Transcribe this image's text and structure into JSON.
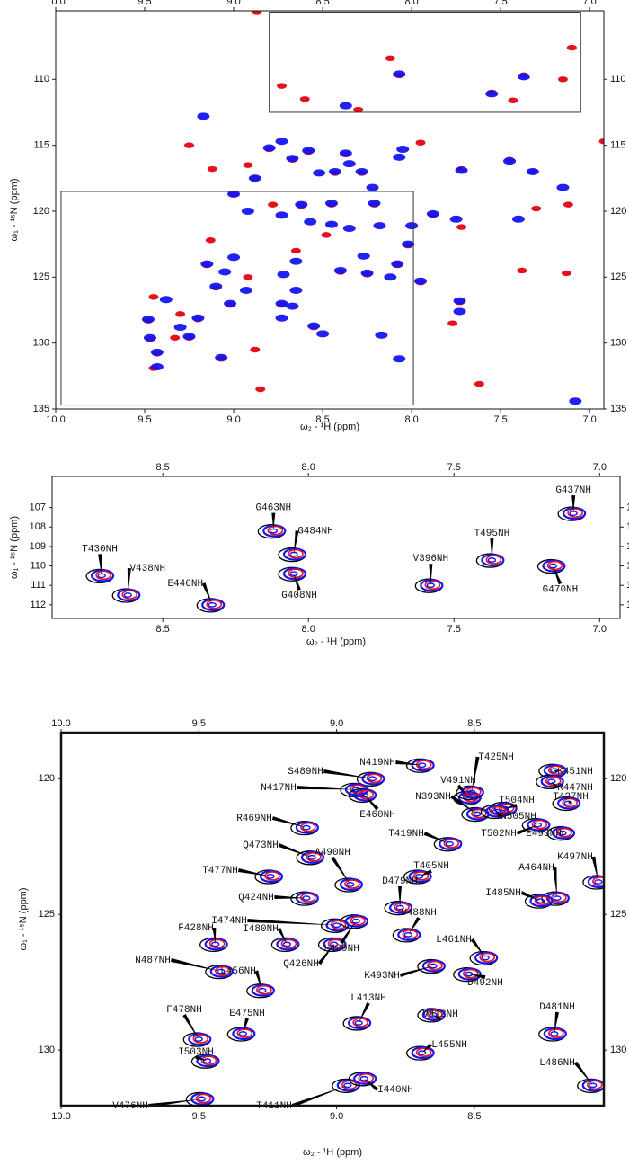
{
  "chart_data": [
    {
      "type": "scatter",
      "xlim": [
        10,
        6.92
      ],
      "ylim": [
        135,
        104.8
      ],
      "xticks": [
        {
          "value": 10,
          "label": "10.0"
        },
        9.5,
        {
          "value": 9,
          "label": "9.0"
        },
        8.5,
        {
          "value": 8,
          "label": "8.0"
        },
        7.5,
        {
          "value": 7,
          "label": "7.0"
        }
      ],
      "yticks": [
        110,
        115,
        120,
        125,
        130,
        135
      ],
      "x_label": "ω₂ - ¹H (ppm)",
      "y_label": "ω₁ - ¹⁵N (ppm)",
      "regions": [
        {
          "xlim": [
            8.8,
            7.05
          ],
          "ylim": [
            112.5,
            104.9
          ]
        },
        {
          "xlim": [
            9.97,
            7.99
          ],
          "ylim": [
            134.7,
            118.5
          ]
        }
      ],
      "series": [
        {
          "color": "#e8101c",
          "x": [
            8.12,
            7.1,
            8.73,
            8.6,
            8.3,
            7.15,
            7.43,
            8.07,
            7.55,
            7.37,
            9.25,
            9.12,
            8.92,
            7.95,
            6.92,
            8.8,
            8.58,
            8.37,
            8.67,
            8.43,
            8.28,
            7.72,
            7.45,
            7.32,
            7.12,
            7.3,
            8.88,
            9.0,
            8.62,
            8.45,
            8.21,
            7.88,
            8.78,
            9.13,
            8.48,
            7.72,
            8.02,
            8.65,
            9.15,
            8.4,
            8.08,
            8.25,
            7.95,
            7.38,
            7.13,
            8.92,
            9.1,
            9.45,
            9.02,
            8.73,
            7.73,
            7.77,
            9.48,
            9.3,
            9.2,
            8.55,
            9.47,
            9.33,
            9.25,
            8.88,
            9.43,
            9.07,
            9.45,
            8.85,
            7.62,
            8.87
          ],
          "y": [
            108.4,
            107.6,
            110.5,
            111.5,
            112.3,
            110.0,
            111.6,
            109.7,
            111.0,
            109.7,
            115.0,
            116.8,
            116.5,
            114.8,
            114.7,
            115.3,
            115.5,
            115.7,
            116.1,
            117.1,
            117.1,
            116.8,
            116.1,
            117.0,
            119.5,
            119.8,
            117.5,
            118.7,
            119.6,
            119.5,
            119.5,
            120.3,
            119.5,
            122.2,
            121.8,
            121.2,
            122.6,
            123.0,
            124.1,
            124.6,
            124.1,
            124.8,
            125.4,
            124.5,
            124.7,
            125.0,
            125.8,
            126.5,
            127.1,
            127.1,
            126.9,
            128.5,
            128.3,
            127.8,
            128.2,
            128.8,
            129.7,
            129.6,
            129.6,
            130.5,
            130.8,
            131.2,
            131.9,
            133.5,
            133.1,
            104.9
          ]
        },
        {
          "color": "#1515f0",
          "x": [
            8.07,
            7.55,
            7.37,
            8.37,
            9.17,
            8.73,
            8.8,
            8.58,
            8.37,
            8.05,
            8.07,
            8.67,
            8.35,
            8.43,
            8.52,
            8.28,
            8.22,
            7.72,
            7.45,
            7.32,
            7.15,
            8.88,
            9.0,
            8.62,
            8.45,
            8.21,
            7.88,
            8.92,
            8.73,
            8.57,
            8.45,
            8.35,
            8.18,
            8.0,
            7.75,
            7.4,
            8.02,
            8.27,
            9.15,
            9.0,
            8.65,
            8.4,
            8.08,
            8.72,
            8.25,
            8.12,
            7.95,
            9.05,
            9.1,
            8.93,
            8.65,
            9.38,
            9.02,
            8.73,
            8.67,
            7.73,
            7.73,
            9.48,
            9.2,
            8.73,
            9.3,
            8.5,
            8.55,
            9.47,
            9.25,
            8.17,
            9.43,
            9.07,
            8.07,
            9.43,
            7.08
          ],
          "y": [
            109.6,
            111.1,
            109.8,
            112.0,
            112.8,
            114.7,
            115.2,
            115.4,
            115.6,
            115.3,
            115.9,
            116.0,
            116.4,
            117.0,
            117.1,
            117.0,
            118.2,
            116.9,
            116.2,
            117.0,
            118.2,
            117.5,
            118.7,
            119.5,
            119.4,
            119.4,
            120.2,
            120.0,
            120.3,
            120.8,
            121.0,
            121.3,
            121.1,
            121.1,
            120.6,
            120.6,
            122.5,
            123.4,
            124.0,
            123.5,
            123.8,
            124.5,
            124.0,
            124.8,
            124.7,
            125.0,
            125.3,
            124.6,
            125.7,
            126.0,
            126.0,
            126.7,
            127.0,
            127.0,
            127.2,
            126.8,
            127.6,
            128.2,
            128.1,
            128.1,
            128.8,
            129.3,
            128.7,
            129.6,
            129.5,
            129.4,
            130.7,
            131.1,
            131.2,
            131.8,
            134.4
          ]
        }
      ]
    },
    {
      "type": "peaks",
      "xlim": [
        8.88,
        6.93
      ],
      "ylim": [
        112.7,
        105.4
      ],
      "xticks": [
        8.5,
        {
          "value": 8,
          "label": "8.0"
        },
        7.5,
        {
          "value": 7,
          "label": "7.0"
        }
      ],
      "yticks": [
        107,
        108,
        109,
        110,
        111,
        112
      ],
      "x_label": "ω₂ - ¹H (ppm)",
      "y_label": "ω₁ - ¹⁵N (ppm)",
      "colors": [
        "#000000",
        "#1515f0",
        "#e8101c"
      ],
      "peaks": [
        {
          "label": "T430NH",
          "x": 8.71,
          "y": 110.5
        },
        {
          "label": "V438NH",
          "x": 8.62,
          "y": 111.5
        },
        {
          "label": "E446NH",
          "x": 8.33,
          "y": 112.0
        },
        {
          "label": "G463NH",
          "x": 8.12,
          "y": 108.2
        },
        {
          "label": "G484NH",
          "x": 8.05,
          "y": 109.4
        },
        {
          "label": "G408NH",
          "x": 8.05,
          "y": 110.4
        },
        {
          "label": "V396NH",
          "x": 7.58,
          "y": 111.0
        },
        {
          "label": "T495NH",
          "x": 7.37,
          "y": 109.7
        },
        {
          "label": "G437NH",
          "x": 7.09,
          "y": 107.3
        },
        {
          "label": "G470NH",
          "x": 7.16,
          "y": 110.0
        }
      ]
    },
    {
      "type": "peaks",
      "xlim": [
        10,
        8.03
      ],
      "ylim": [
        132.05,
        118.3
      ],
      "xticks": [
        {
          "value": 10,
          "label": "10.0"
        },
        9.5,
        {
          "value": 9,
          "label": "9.0"
        },
        8.5
      ],
      "yticks": [
        120,
        125,
        130
      ],
      "x_label": "ω₂ - ¹H (ppm)",
      "y_label": "ω₁ - ¹⁵N (ppm)",
      "colors": [
        "#000000",
        "#1515f0",
        "#e8101c"
      ],
      "peaks": [
        {
          "label": "N419NH",
          "x": 8.69,
          "y": 119.5
        },
        {
          "label": "S489NH",
          "x": 8.87,
          "y": 120.0
        },
        {
          "label": "N417NH",
          "x": 8.93,
          "y": 120.4
        },
        {
          "label": "E460NH",
          "x": 8.9,
          "y": 120.6
        },
        {
          "label": "V491NH",
          "x": 8.52,
          "y": 120.7
        },
        {
          "label": "T425NH",
          "x": 8.51,
          "y": 120.5
        },
        {
          "label": "K451NH",
          "x": 8.21,
          "y": 119.7
        },
        {
          "label": "R447NH",
          "x": 8.22,
          "y": 120.1
        },
        {
          "label": "T504NH",
          "x": 8.39,
          "y": 121.1
        },
        {
          "label": "N393NH",
          "x": 8.49,
          "y": 121.3
        },
        {
          "label": "T427NH",
          "x": 8.16,
          "y": 120.9
        },
        {
          "label": "N505NH",
          "x": 8.42,
          "y": 121.2
        },
        {
          "label": "T502NH",
          "x": 8.27,
          "y": 121.7
        },
        {
          "label": "E498NH",
          "x": 8.18,
          "y": 122.0
        },
        {
          "label": "R469NH",
          "x": 9.11,
          "y": 121.8
        },
        {
          "label": "T419NH",
          "x": 8.59,
          "y": 122.4
        },
        {
          "label": "Q473NH",
          "x": 9.09,
          "y": 122.9
        },
        {
          "label": "A490NH",
          "x": 8.95,
          "y": 123.9
        },
        {
          "label": "T405NH",
          "x": 8.7,
          "y": 123.6
        },
        {
          "label": "A464NH",
          "x": 8.2,
          "y": 124.4
        },
        {
          "label": "K497NH",
          "x": 8.05,
          "y": 123.8
        },
        {
          "label": "T477NH",
          "x": 9.24,
          "y": 123.6
        },
        {
          "label": "D479NH",
          "x": 8.77,
          "y": 124.75
        },
        {
          "label": "I485NH",
          "x": 8.26,
          "y": 124.5
        },
        {
          "label": "Q424NH",
          "x": 9.11,
          "y": 124.4
        },
        {
          "label": "V488NH",
          "x": 8.74,
          "y": 125.75
        },
        {
          "label": "I474NH",
          "x": 9.0,
          "y": 125.4
        },
        {
          "label": "I480NH",
          "x": 9.18,
          "y": 126.1
        },
        {
          "label": "F428NH",
          "x": 9.44,
          "y": 126.1
        },
        {
          "label": "L439NH",
          "x": 8.93,
          "y": 125.25
        },
        {
          "label": "Q426NH",
          "x": 9.01,
          "y": 126.1
        },
        {
          "label": "L461NH",
          "x": 8.46,
          "y": 126.6
        },
        {
          "label": "N487NH",
          "x": 9.42,
          "y": 127.1
        },
        {
          "label": "L456NH",
          "x": 9.27,
          "y": 127.8
        },
        {
          "label": "K493NH",
          "x": 8.65,
          "y": 126.9
        },
        {
          "label": "D492NH",
          "x": 8.52,
          "y": 127.2
        },
        {
          "label": "L413NH",
          "x": 8.92,
          "y": 129.0
        },
        {
          "label": "E475NH",
          "x": 9.34,
          "y": 129.4
        },
        {
          "label": "F478NH",
          "x": 9.5,
          "y": 129.6
        },
        {
          "label": "V412NH",
          "x": 8.65,
          "y": 128.7
        },
        {
          "label": "D481NH",
          "x": 8.21,
          "y": 129.4
        },
        {
          "label": "I503NH",
          "x": 9.47,
          "y": 130.4
        },
        {
          "label": "L455NH",
          "x": 8.69,
          "y": 130.1
        },
        {
          "label": "L486NH",
          "x": 8.07,
          "y": 131.3
        },
        {
          "label": "V476NH",
          "x": 9.49,
          "y": 131.8
        },
        {
          "label": "T411NH",
          "x": 8.96,
          "y": 131.3
        },
        {
          "label": "I440NH",
          "x": 8.9,
          "y": 131.05
        }
      ]
    }
  ]
}
